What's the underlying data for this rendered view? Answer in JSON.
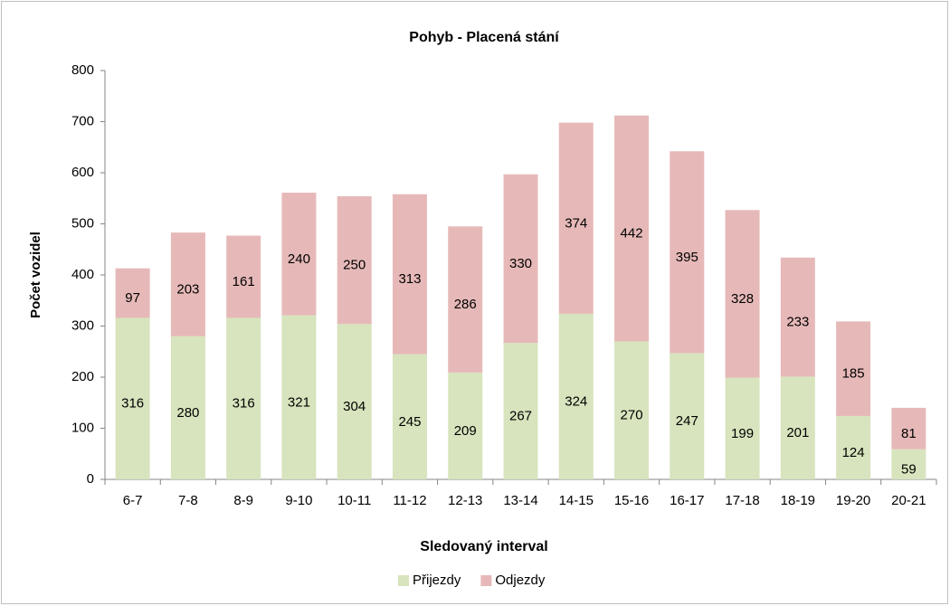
{
  "chart_data": {
    "type": "stacked_bar",
    "title": "Pohyb - Placená stání",
    "x_label": "Sledovaný interval",
    "y_label": "Počet vozidel",
    "categories": [
      "6-7",
      "7-8",
      "8-9",
      "9-10",
      "10-11",
      "11-12",
      "12-13",
      "13-14",
      "14-15",
      "15-16",
      "16-17",
      "17-18",
      "18-19",
      "19-20",
      "20-21"
    ],
    "series": [
      {
        "name": "Přijezdy",
        "color": "#d7e4bd",
        "values": [
          316,
          280,
          316,
          321,
          304,
          245,
          209,
          267,
          324,
          270,
          247,
          199,
          201,
          124,
          59
        ]
      },
      {
        "name": "Odjezdy",
        "color": "#e6b9b8",
        "values": [
          97,
          203,
          161,
          240,
          250,
          313,
          286,
          330,
          374,
          442,
          395,
          328,
          233,
          185,
          81
        ]
      }
    ],
    "ylim": [
      0,
      800
    ],
    "yticks": [
      0,
      100,
      200,
      300,
      400,
      500,
      600,
      700,
      800
    ],
    "grid": false,
    "legend": "bottom"
  }
}
